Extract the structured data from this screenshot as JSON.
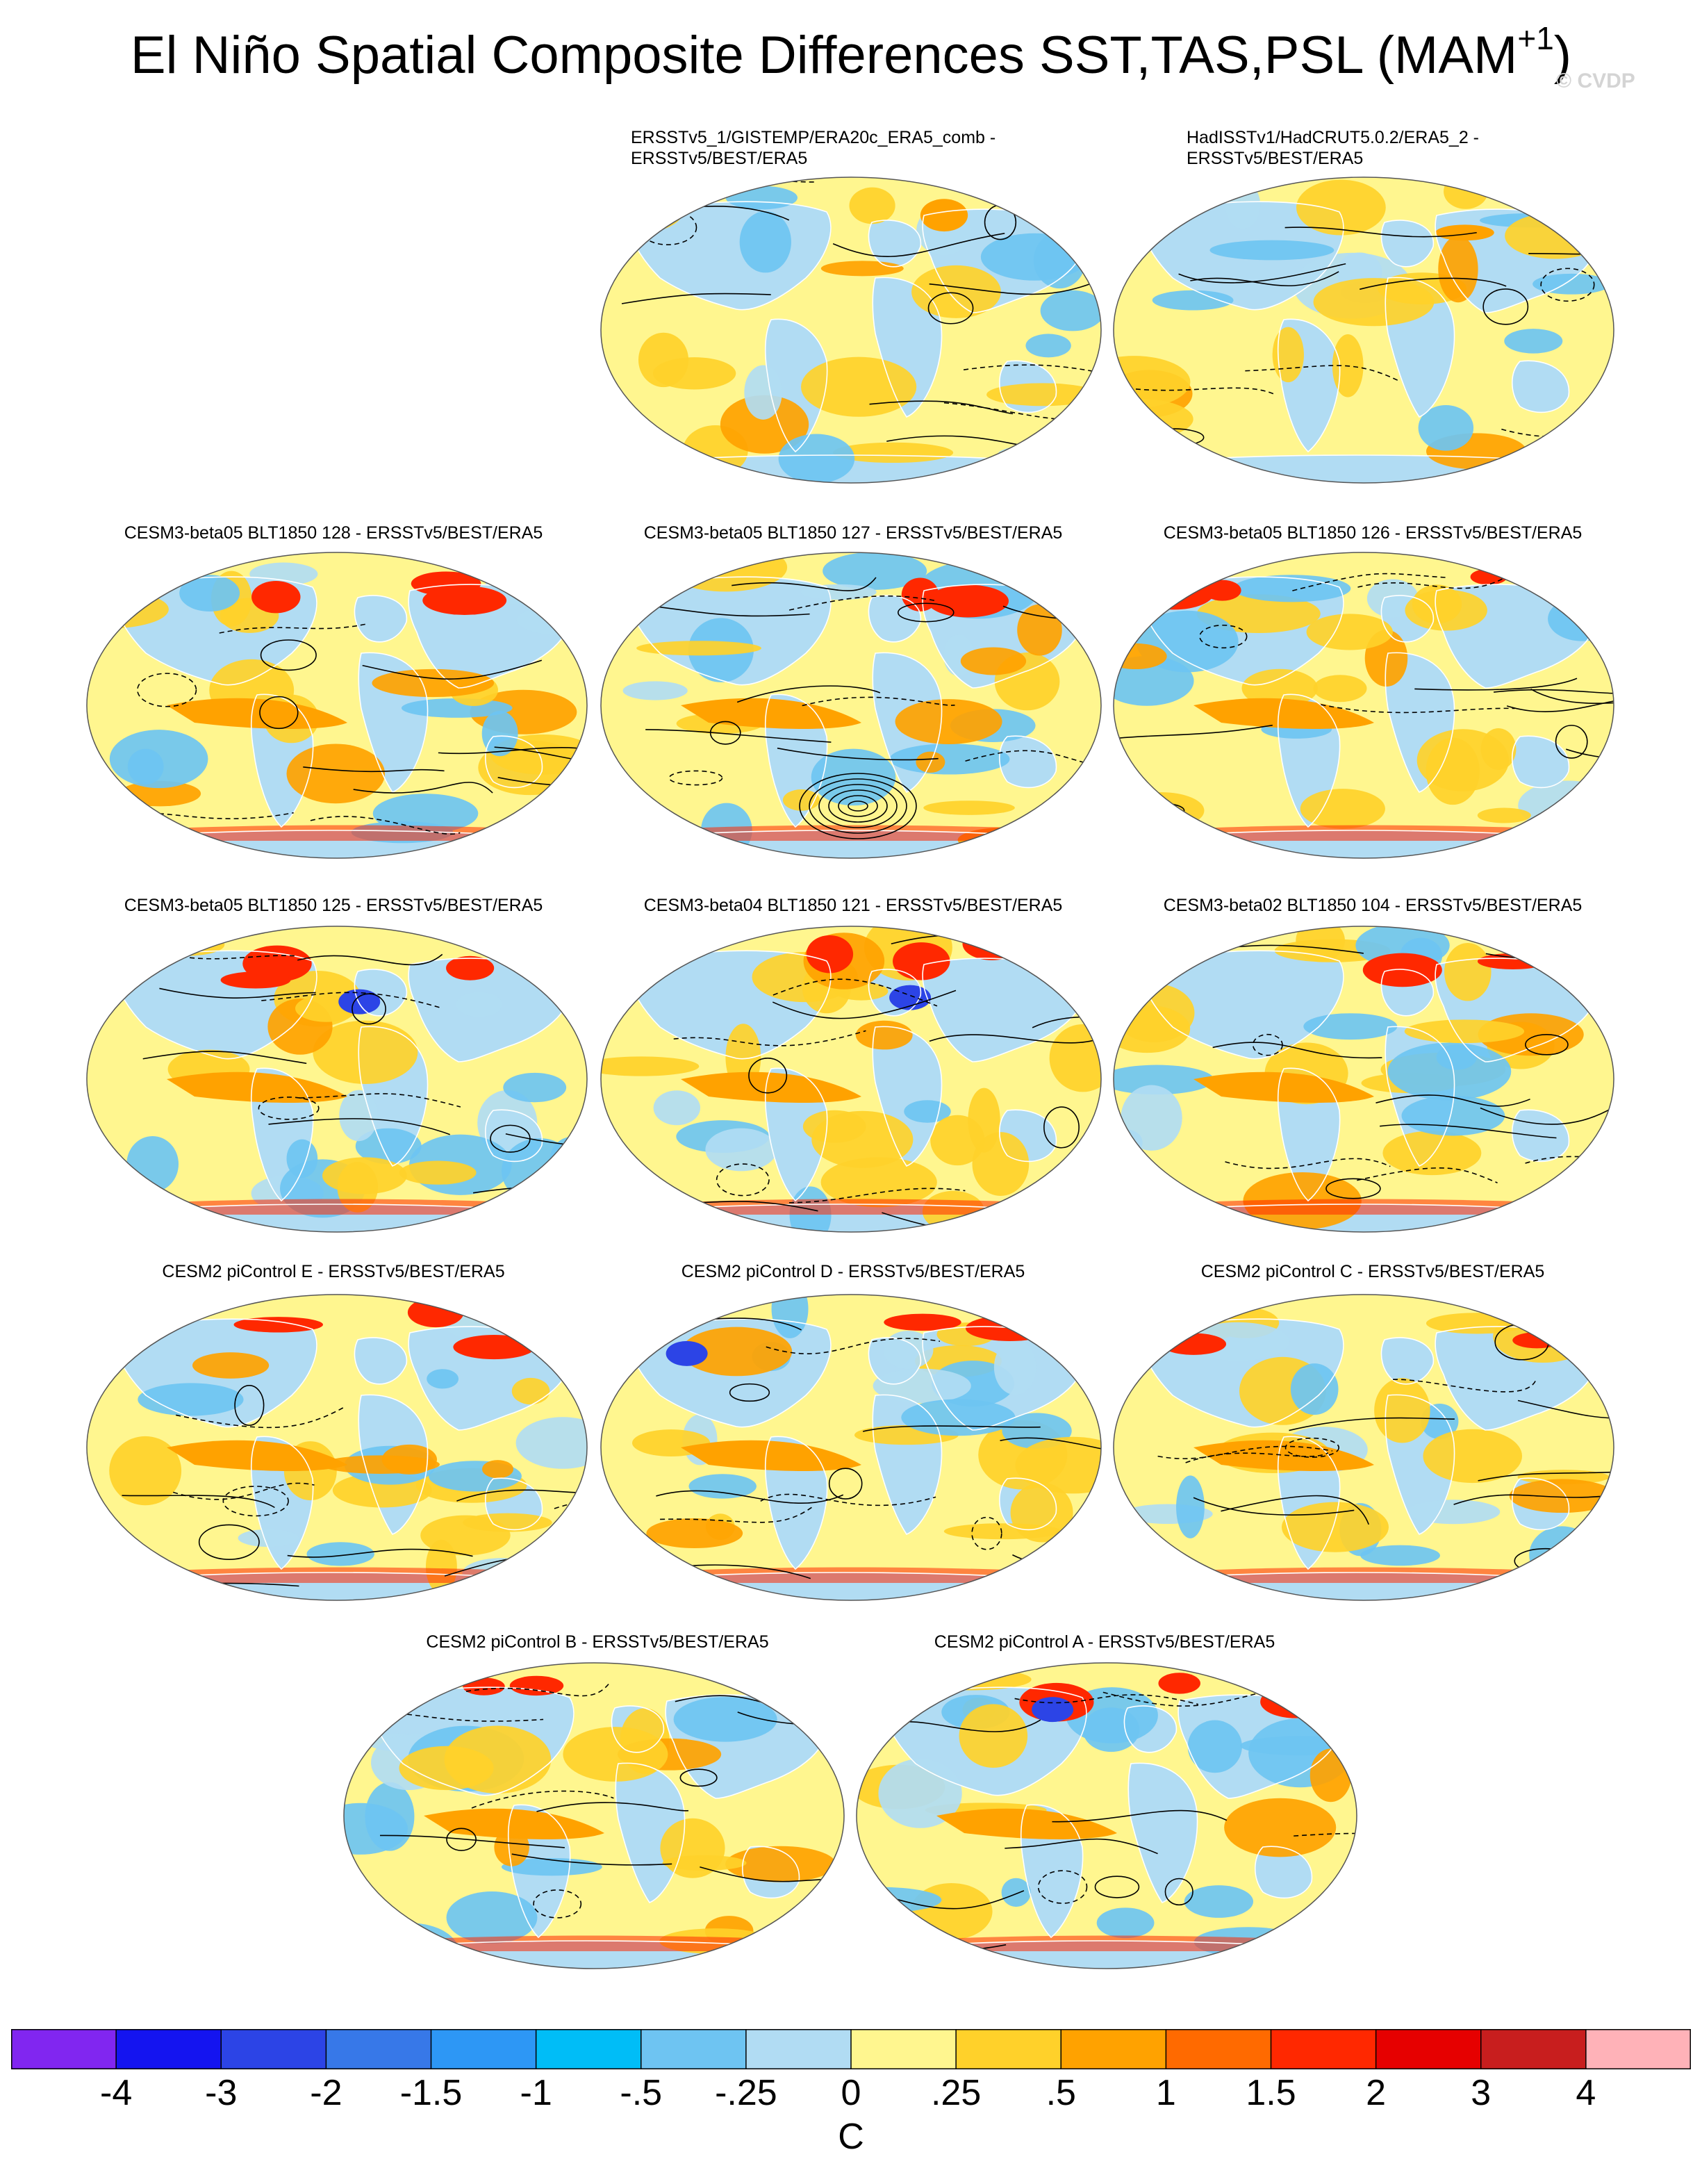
{
  "figure": {
    "title_main": "El Niño Spatial Composite Differences SST,TAS,PSL (MAM",
    "title_sup": "+1",
    "title_close": ")",
    "watermark": "© CVDP"
  },
  "panels": [
    {
      "id": "p1",
      "title_line1": "ERSSTv5_1/GISTEMP/ERA20c_ERA5_comb -",
      "title_line2": "ERSSTv5/BEST/ERA5"
    },
    {
      "id": "p2",
      "title_line1": "HadISSTv1/HadCRUT5.0.2/ERA5_2 -",
      "title_line2": "ERSSTv5/BEST/ERA5"
    },
    {
      "id": "p3",
      "title_line1": "CESM3-beta05 BLT1850 128 - ERSSTv5/BEST/ERA5"
    },
    {
      "id": "p4",
      "title_line1": "CESM3-beta05 BLT1850 127 - ERSSTv5/BEST/ERA5"
    },
    {
      "id": "p5",
      "title_line1": "CESM3-beta05 BLT1850 126 - ERSSTv5/BEST/ERA5"
    },
    {
      "id": "p6",
      "title_line1": "CESM3-beta05 BLT1850 125 - ERSSTv5/BEST/ERA5"
    },
    {
      "id": "p7",
      "title_line1": "CESM3-beta04 BLT1850 121 - ERSSTv5/BEST/ERA5"
    },
    {
      "id": "p8",
      "title_line1": "CESM3-beta02 BLT1850 104 - ERSSTv5/BEST/ERA5"
    },
    {
      "id": "p9",
      "title_line1": "CESM2 piControl E - ERSSTv5/BEST/ERA5"
    },
    {
      "id": "p10",
      "title_line1": "CESM2 piControl D - ERSSTv5/BEST/ERA5"
    },
    {
      "id": "p11",
      "title_line1": "CESM2 piControl C - ERSSTv5/BEST/ERA5"
    },
    {
      "id": "p12",
      "title_line1": "CESM2 piControl B - ERSSTv5/BEST/ERA5"
    },
    {
      "id": "p13",
      "title_line1": "CESM2 piControl A - ERSSTv5/BEST/ERA5"
    }
  ],
  "colorbar": {
    "units": "C",
    "labels": [
      "-4",
      "-3",
      "-2",
      "-1.5",
      "-1",
      "-.5",
      "-.25",
      "0",
      ".25",
      ".5",
      "1",
      "1.5",
      "2",
      "3",
      "4"
    ],
    "colors": [
      "#8126f0",
      "#1414f0",
      "#2c44e6",
      "#3778e8",
      "#2d97f5",
      "#00bdf7",
      "#6ec4f2",
      "#b1dcf3",
      "#fff68f",
      "#ffd12a",
      "#ffa200",
      "#ff6a00",
      "#ff2800",
      "#e60000",
      "#c81e1e",
      "#ffb2b8"
    ]
  },
  "map_palette": {
    "ocean_base": "#fff68f",
    "land_base": "#b1dcf3",
    "warm": "#ffd12a",
    "warmer": "#ffa200",
    "hot": "#ff2800",
    "cool": "#b1dcf3",
    "cooler": "#6ec4f2",
    "cold": "#2c44e6",
    "contour": "#000000",
    "coastline": "#ffffff"
  }
}
